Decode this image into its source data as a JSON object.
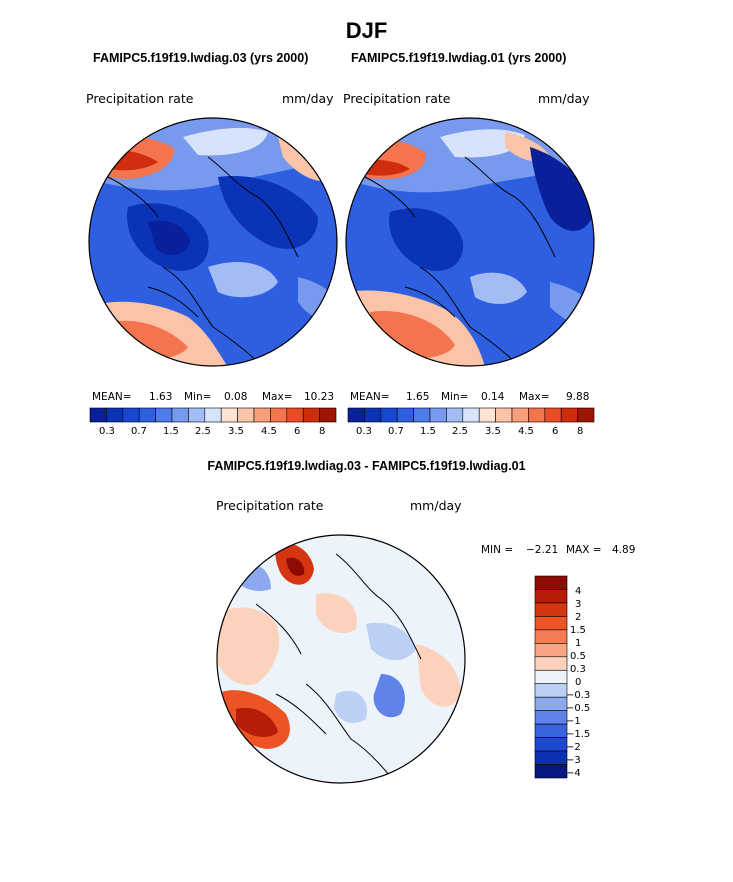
{
  "title": "DJF",
  "colors": {
    "abs": [
      "#08209a",
      "#0b33b8",
      "#1746d1",
      "#2e5fe0",
      "#4d7ce8",
      "#7799ee",
      "#a3bcf4",
      "#d6e3fb",
      "#fde3d4",
      "#fbc3a8",
      "#f89e7b",
      "#f4744e",
      "#ea4c25",
      "#cf2d0d",
      "#9e1503"
    ],
    "diff": [
      "#8e0b04",
      "#b71c06",
      "#d53510",
      "#ec5425",
      "#f47c52",
      "#f8a585",
      "#fcd2bd",
      "#ecf3fb",
      "#bcd0f6",
      "#8ca9f0",
      "#5f83e8",
      "#3a63df",
      "#1f48d0",
      "#0d2fb1",
      "#06187f"
    ]
  },
  "panels": {
    "left": {
      "case": "FAMIPC5.f19f19.lwdiag.03 (yrs 2000)",
      "variable": "Precipitation rate",
      "units": "mm/day",
      "mean_label": "MEAN=",
      "mean": "1.63",
      "min_label": "Min=",
      "min": "0.08",
      "max_label": "Max=",
      "max": "10.23"
    },
    "right": {
      "case": "FAMIPC5.f19f19.lwdiag.01 (yrs 2000)",
      "variable": "Precipitation rate",
      "units": "mm/day",
      "mean_label": "MEAN=",
      "mean": "1.65",
      "min_label": "Min=",
      "min": "0.14",
      "max_label": "Max=",
      "max": "9.88"
    },
    "diff": {
      "case": "FAMIPC5.f19f19.lwdiag.03 - FAMIPC5.f19f19.lwdiag.01",
      "variable": "Precipitation rate",
      "units": "mm/day",
      "min_label": "MIN =",
      "min": "−2.21",
      "max_label": "MAX =",
      "max": "4.89"
    }
  },
  "chart_data": [
    {
      "type": "heatmap",
      "title": "FAMIPC5.f19f19.lwdiag.03 (yrs 2000)",
      "variable": "Precipitation rate",
      "units": "mm/day",
      "projection": "north polar stereographic",
      "stats": {
        "mean": 1.63,
        "min": 0.08,
        "max": 10.23
      },
      "colorbar_ticks": [
        "0.3",
        "0.7",
        "1.5",
        "2.5",
        "3.5",
        "4.5",
        "6",
        "8"
      ]
    },
    {
      "type": "heatmap",
      "title": "FAMIPC5.f19f19.lwdiag.01 (yrs 2000)",
      "variable": "Precipitation rate",
      "units": "mm/day",
      "projection": "north polar stereographic",
      "stats": {
        "mean": 1.65,
        "min": 0.14,
        "max": 9.88
      },
      "colorbar_ticks": [
        "0.3",
        "0.7",
        "1.5",
        "2.5",
        "3.5",
        "4.5",
        "6",
        "8"
      ]
    },
    {
      "type": "heatmap",
      "title": "FAMIPC5.f19f19.lwdiag.03 - FAMIPC5.f19f19.lwdiag.01",
      "variable": "Precipitation rate",
      "units": "mm/day",
      "projection": "north polar stereographic",
      "stats": {
        "min": -2.21,
        "max": 4.89
      },
      "colorbar_ticks": [
        "4",
        "3",
        "2",
        "1.5",
        "1",
        "0.5",
        "0.3",
        "0",
        "−0.3",
        "−0.5",
        "−1",
        "−1.5",
        "−2",
        "−3",
        "−4"
      ]
    }
  ]
}
